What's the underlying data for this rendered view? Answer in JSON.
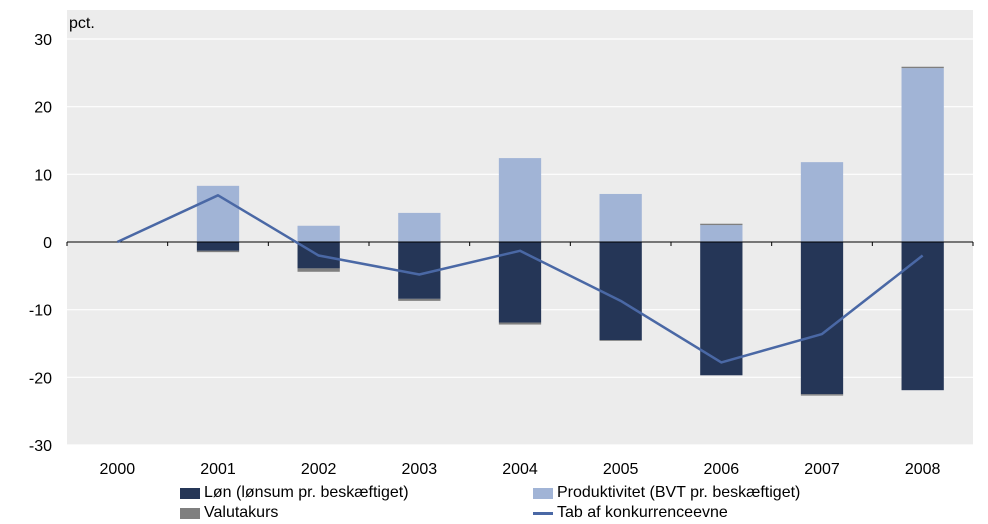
{
  "chart_data": {
    "type": "bar",
    "unit_label": "pct.",
    "categories": [
      "2000",
      "2001",
      "2002",
      "2003",
      "2004",
      "2005",
      "2006",
      "2007",
      "2008"
    ],
    "ylim": [
      -30,
      30
    ],
    "yticks": [
      30,
      20,
      10,
      0,
      -10,
      -20,
      -30
    ],
    "ytick_labels": [
      "30",
      "20",
      "10",
      "0",
      "-10",
      "-20",
      "-30"
    ],
    "grid": "horizontal",
    "stacked": true,
    "series": [
      {
        "name": "Løn (lønsum pr. beskæftiget)",
        "kind": "bar",
        "color": "#253657",
        "values": [
          0,
          -1.3,
          -3.9,
          -8.4,
          -11.9,
          -14.5,
          -19.7,
          -22.5,
          -21.9
        ]
      },
      {
        "name": "Produktivitet (BVT pr. beskæftiget)",
        "kind": "bar",
        "color": "#a1b4d6",
        "values": [
          0,
          8.3,
          2.4,
          4.3,
          12.4,
          7.1,
          2.5,
          11.8,
          25.7
        ]
      },
      {
        "name": "Valutakurs",
        "kind": "bar",
        "color": "#7f7f7f",
        "values": [
          0,
          -0.2,
          -0.5,
          -0.3,
          -0.3,
          -0.1,
          0.2,
          -0.2,
          0.2
        ]
      },
      {
        "name": "Tab af konkurrenceevne",
        "kind": "line",
        "color": "#4a68a5",
        "values": [
          0,
          6.9,
          -2.0,
          -4.8,
          -1.3,
          -8.7,
          -17.8,
          -13.6,
          -2.0
        ]
      }
    ],
    "legend": {
      "position": "bottom",
      "items": [
        {
          "label": "Løn (lønsum pr. beskæftiget)",
          "swatch": "bar",
          "color": "#253657"
        },
        {
          "label": "Produktivitet (BVT pr. beskæftiget)",
          "swatch": "bar",
          "color": "#a1b4d6"
        },
        {
          "label": "Valutakurs",
          "swatch": "bar",
          "color": "#7f7f7f"
        },
        {
          "label": "Tab af konkurrenceevne",
          "swatch": "line",
          "color": "#4a68a5"
        }
      ]
    },
    "colors": {
      "plot_background": "#ececec",
      "gridline": "#ffffff",
      "axis": "#000000"
    }
  }
}
